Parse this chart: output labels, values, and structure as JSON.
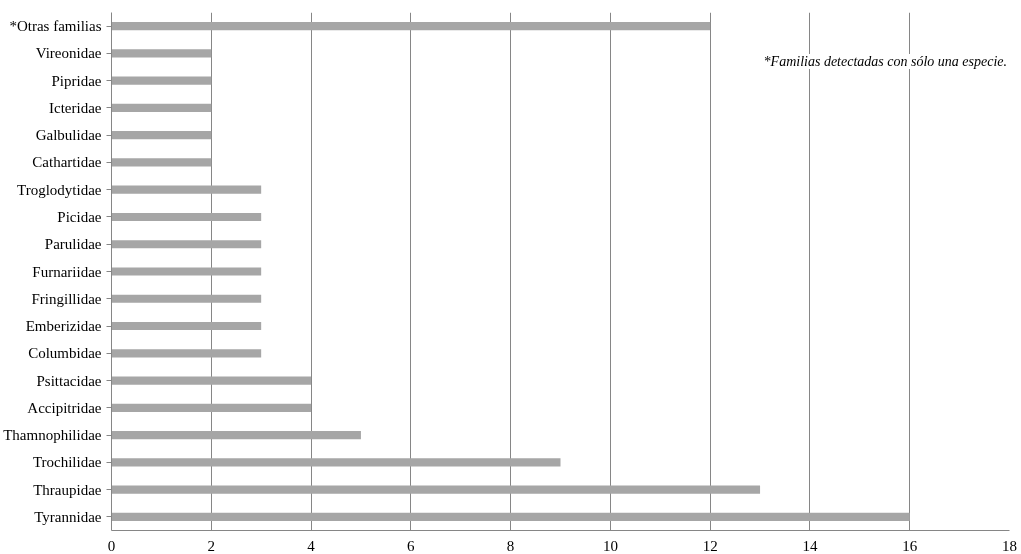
{
  "chart_data": {
    "type": "bar",
    "orientation": "horizontal",
    "categories": [
      "*Otras familias",
      "Vireonidae",
      "Pipridae",
      "Icteridae",
      "Galbulidae",
      "Cathartidae",
      "Troglodytidae",
      "Picidae",
      "Parulidae",
      "Furnariidae",
      "Fringillidae",
      "Emberizidae",
      "Columbidae",
      "Psittacidae",
      "Accipitridae",
      "Thamnophilidae",
      "Trochilidae",
      "Thraupidae",
      "Tyrannidae"
    ],
    "values": [
      12,
      2,
      2,
      2,
      2,
      2,
      3,
      3,
      3,
      3,
      3,
      3,
      3,
      4,
      4,
      5,
      9,
      13,
      16
    ],
    "color": "#a6a6a6",
    "xlim": [
      0,
      18
    ],
    "xticks": [
      0,
      2,
      4,
      6,
      8,
      10,
      12,
      14,
      16,
      18
    ],
    "grid": "x",
    "annotations": [
      "*Familias detectadas con sólo una especie."
    ]
  }
}
